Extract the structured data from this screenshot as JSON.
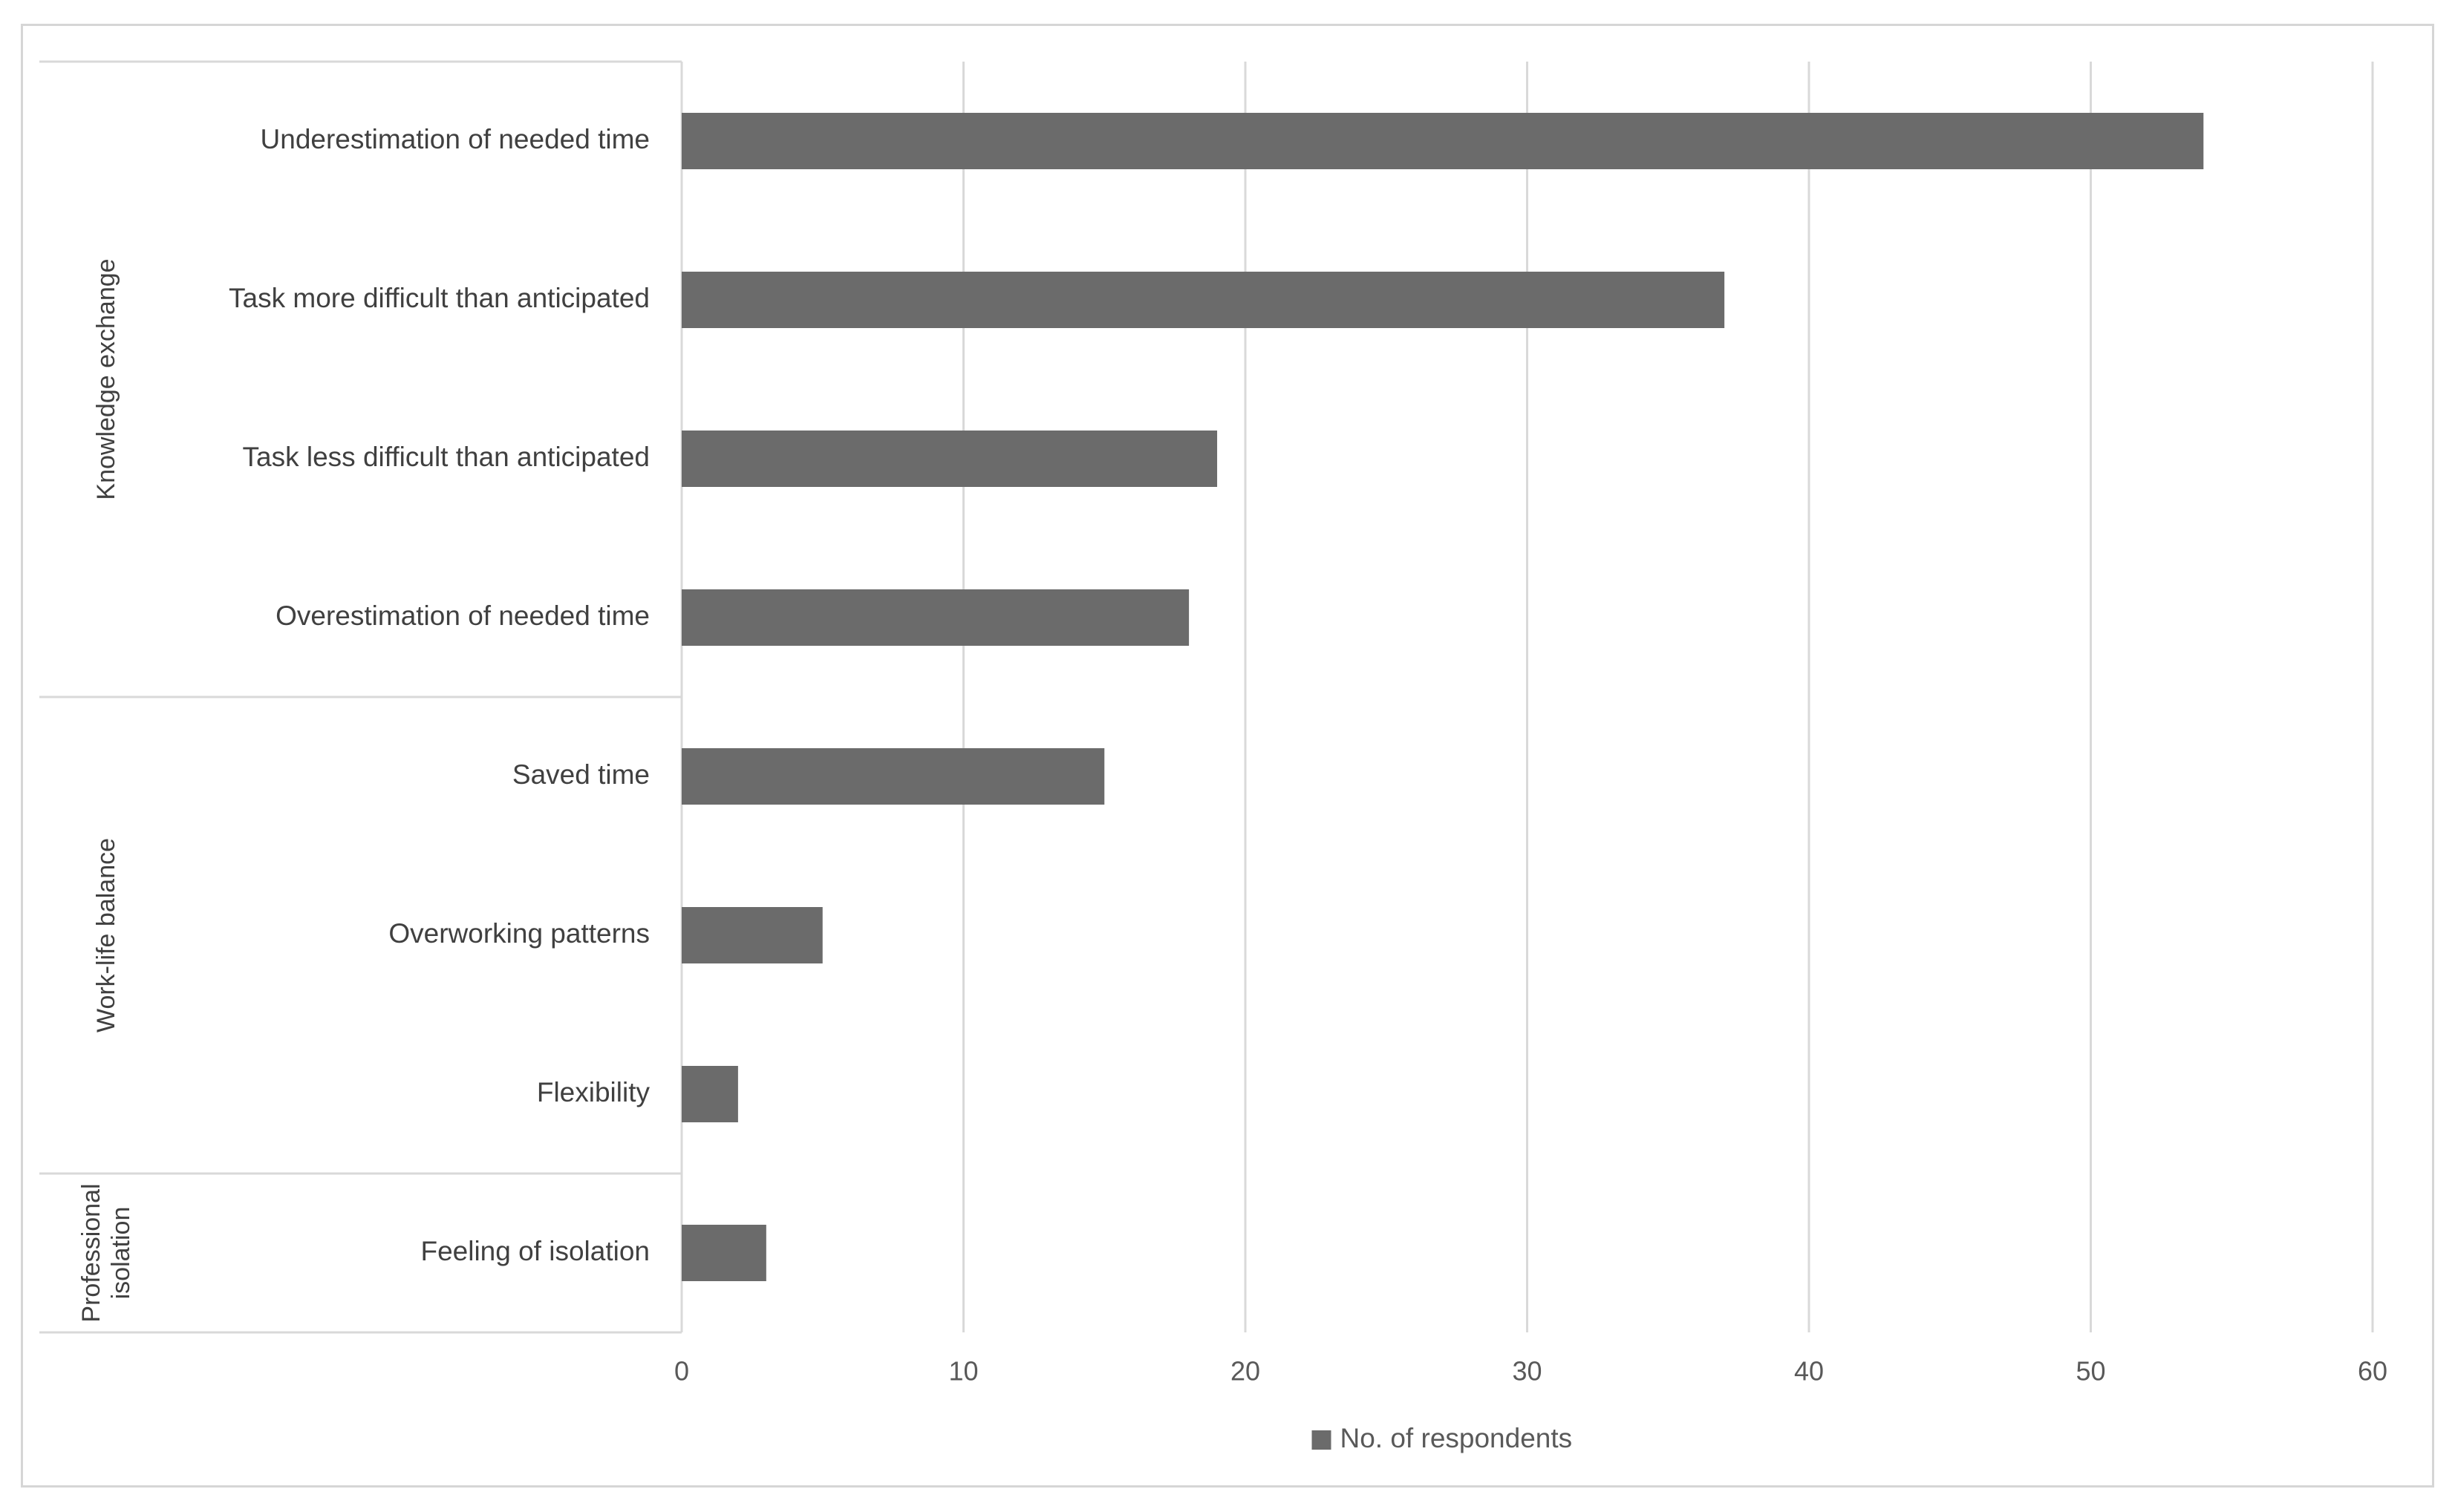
{
  "chart_data": {
    "type": "bar",
    "orientation": "horizontal",
    "title": "",
    "xlabel": "",
    "ylabel": "",
    "xlim": [
      0,
      60
    ],
    "x_ticks": [
      "0",
      "10",
      "20",
      "30",
      "40",
      "50",
      "60"
    ],
    "grid": "vertical",
    "legend_position": "bottom",
    "bar_color": "#6b6b6b",
    "groups": [
      {
        "name": "Knowledge exchange",
        "categories": [
          "Underestimation of needed time",
          "Task more difficult than anticipated",
          "Task less difficult than anticipated",
          "Overestimation of needed time"
        ]
      },
      {
        "name": "Work-life balance",
        "categories": [
          "Saved time",
          "Overworking patterns",
          "Flexibility"
        ]
      },
      {
        "name": "Professional isolation",
        "name_lines": [
          "Professional",
          "isolation"
        ],
        "categories": [
          "Feeling of isolation"
        ]
      }
    ],
    "categories": [
      "Underestimation of needed time",
      "Task more difficult than anticipated",
      "Task less difficult than anticipated",
      "Overestimation of needed time",
      "Saved time",
      "Overworking patterns",
      "Flexibility",
      "Feeling of isolation"
    ],
    "series": [
      {
        "name": "No. of respondents",
        "values": [
          54,
          37,
          19,
          18,
          15,
          5,
          2,
          3
        ]
      }
    ]
  }
}
